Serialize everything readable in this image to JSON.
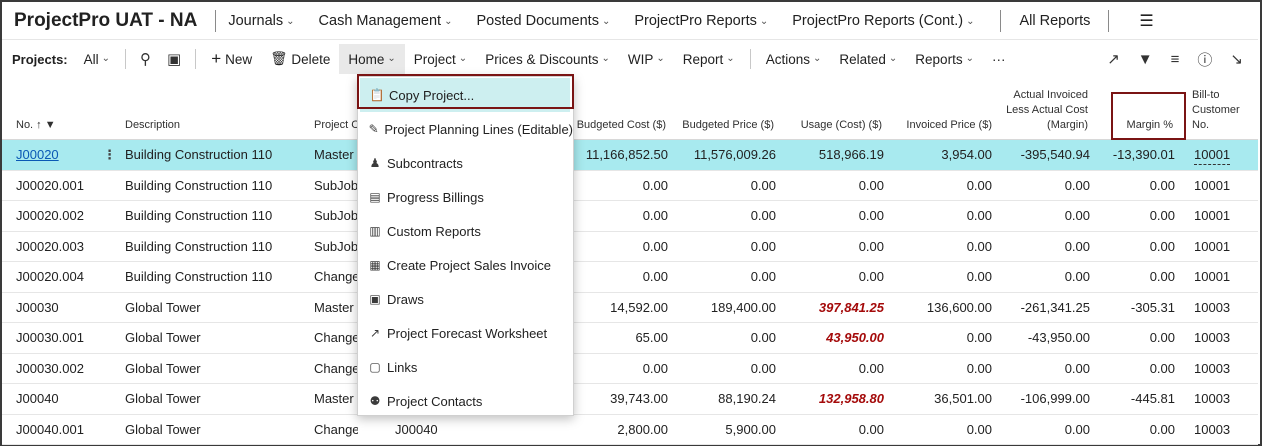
{
  "app": {
    "title": "ProjectPro UAT - NA"
  },
  "top_nav": [
    {
      "label": "Journals",
      "has_chevron": true
    },
    {
      "label": "Cash Management",
      "has_chevron": true
    },
    {
      "label": "Posted Documents",
      "has_chevron": true
    },
    {
      "label": "ProjectPro Reports",
      "has_chevron": true
    },
    {
      "label": "ProjectPro Reports (Cont.)",
      "has_chevron": true
    }
  ],
  "all_reports": "All Reports",
  "action_bar": {
    "projects_label": "Projects:",
    "filter_value": "All",
    "new_label": "New",
    "delete_label": "Delete",
    "home_label": "Home",
    "project_label": "Project",
    "prices_label": "Prices & Discounts",
    "wip_label": "WIP",
    "report_label": "Report",
    "actions_label": "Actions",
    "related_label": "Related",
    "reports_label": "Reports",
    "more_label": "···"
  },
  "table": {
    "headers": {
      "no": "No. ↑",
      "description": "Description",
      "project_class": "Project Cl",
      "budgeted_cost": "Budgeted Cost ($)",
      "budgeted_price": "Budgeted Price ($)",
      "usage_cost": "Usage (Cost) ($)",
      "invoiced_price": "Invoiced Price ($)",
      "actual_invoiced_1": "Actual Invoiced",
      "actual_invoiced_2": "Less Actual Cost",
      "actual_invoiced_3": "(Margin)",
      "margin_pct": "Margin %",
      "bill_to_1": "Bill-to",
      "bill_to_2": "Customer No."
    },
    "rows": [
      {
        "no": "J00020",
        "desc": "Building Construction 110",
        "cls": "Master .",
        "extra": "",
        "bcost": "11,166,852.50",
        "bprice": "11,576,009.26",
        "usage": "518,966.19",
        "usage_red": false,
        "inv": "3,954.00",
        "margin": "-395,540.94",
        "mpct": "-13,390.01",
        "bill": "10001"
      },
      {
        "no": "J00020.001",
        "desc": "Building Construction 110",
        "cls": "SubJob",
        "extra": "",
        "bcost": "0.00",
        "bprice": "0.00",
        "usage": "0.00",
        "usage_red": false,
        "inv": "0.00",
        "margin": "0.00",
        "mpct": "0.00",
        "bill": "10001"
      },
      {
        "no": "J00020.002",
        "desc": "Building Construction 110",
        "cls": "SubJob",
        "extra": "",
        "bcost": "0.00",
        "bprice": "0.00",
        "usage": "0.00",
        "usage_red": false,
        "inv": "0.00",
        "margin": "0.00",
        "mpct": "0.00",
        "bill": "10001"
      },
      {
        "no": "J00020.003",
        "desc": "Building Construction 110",
        "cls": "SubJob",
        "extra": "",
        "bcost": "0.00",
        "bprice": "0.00",
        "usage": "0.00",
        "usage_red": false,
        "inv": "0.00",
        "margin": "0.00",
        "mpct": "0.00",
        "bill": "10001"
      },
      {
        "no": "J00020.004",
        "desc": "Building Construction 110",
        "cls": "Change",
        "extra": "",
        "bcost": "0.00",
        "bprice": "0.00",
        "usage": "0.00",
        "usage_red": false,
        "inv": "0.00",
        "margin": "0.00",
        "mpct": "0.00",
        "bill": "10001"
      },
      {
        "no": "J00030",
        "desc": "Global Tower",
        "cls": "Master .",
        "extra": "",
        "bcost": "14,592.00",
        "bprice": "189,400.00",
        "usage": "397,841.25",
        "usage_red": true,
        "inv": "136,600.00",
        "margin": "-261,341.25",
        "mpct": "-305.31",
        "bill": "10003"
      },
      {
        "no": "J00030.001",
        "desc": "Global Tower",
        "cls": "Change",
        "extra": "",
        "bcost": "65.00",
        "bprice": "0.00",
        "usage": "43,950.00",
        "usage_red": true,
        "inv": "0.00",
        "margin": "-43,950.00",
        "mpct": "0.00",
        "bill": "10003"
      },
      {
        "no": "J00030.002",
        "desc": "Global Tower",
        "cls": "Change",
        "extra": "",
        "bcost": "0.00",
        "bprice": "0.00",
        "usage": "0.00",
        "usage_red": false,
        "inv": "0.00",
        "margin": "0.00",
        "mpct": "0.00",
        "bill": "10003"
      },
      {
        "no": "J00040",
        "desc": "Global Tower",
        "cls": "Master .",
        "extra": "",
        "bcost": "39,743.00",
        "bprice": "88,190.24",
        "usage": "132,958.80",
        "usage_red": true,
        "inv": "36,501.00",
        "margin": "-106,999.00",
        "mpct": "-445.81",
        "bill": "10003"
      },
      {
        "no": "J00040.001",
        "desc": "Global Tower",
        "cls": "Change Or...",
        "extra": "J00040",
        "bcost": "2,800.00",
        "bprice": "5,900.00",
        "usage": "0.00",
        "usage_red": false,
        "inv": "0.00",
        "margin": "0.00",
        "mpct": "0.00",
        "bill": "10003"
      }
    ]
  },
  "home_menu": [
    {
      "label": "Copy Project...",
      "icon": "clipboard-icon",
      "glyph": "📋"
    },
    {
      "label": "Project Planning Lines (Editable)",
      "icon": "edit-lines-icon",
      "glyph": "✎"
    },
    {
      "label": "Subcontracts",
      "icon": "people-icon",
      "glyph": "♟"
    },
    {
      "label": "Progress Billings",
      "icon": "billing-icon",
      "glyph": "▤"
    },
    {
      "label": "Custom Reports",
      "icon": "document-icon",
      "glyph": "▥"
    },
    {
      "label": "Create Project Sales Invoice",
      "icon": "invoice-icon",
      "glyph": "▦"
    },
    {
      "label": "Draws",
      "icon": "draws-icon",
      "glyph": "▣"
    },
    {
      "label": "Project Forecast Worksheet",
      "icon": "chart-icon",
      "glyph": "↗"
    },
    {
      "label": "Links",
      "icon": "link-icon",
      "glyph": "▢"
    },
    {
      "label": "Project Contacts",
      "icon": "contacts-icon",
      "glyph": "⚉"
    }
  ],
  "colors": {
    "selected_row": "#a8eaef",
    "menu_highlight": "#cdeff0",
    "red_value": "#a40a0a",
    "highlight_box": "#7a1414"
  }
}
